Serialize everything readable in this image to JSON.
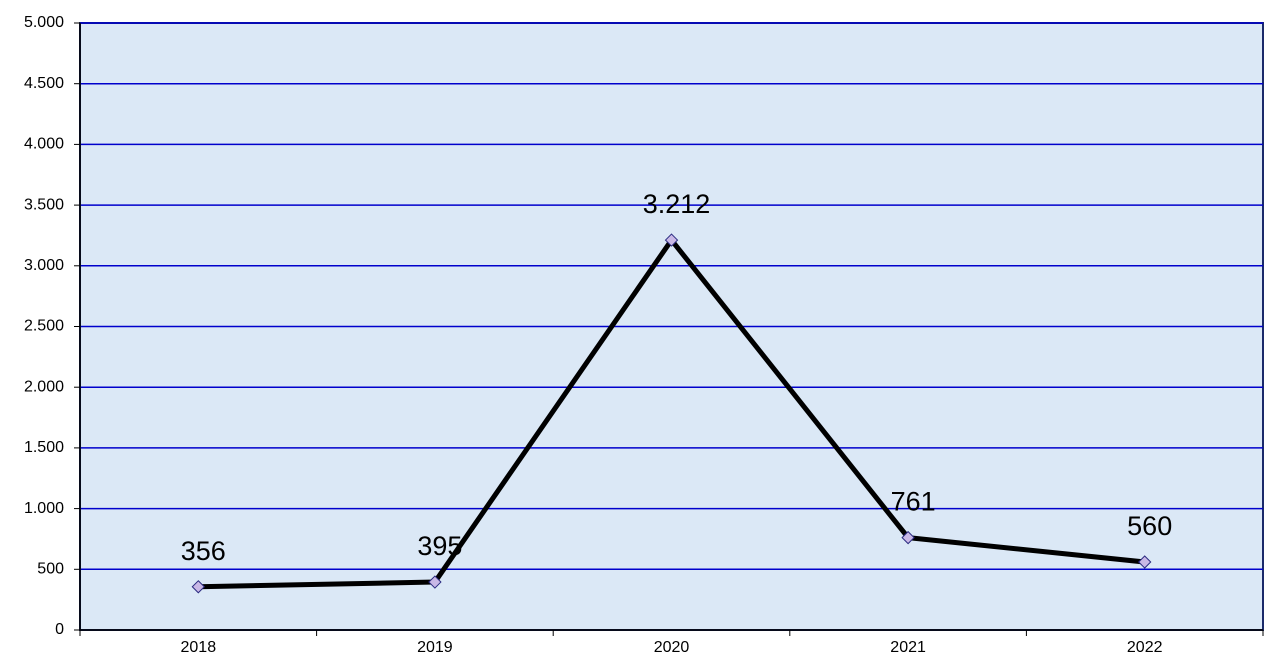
{
  "chart_data": {
    "type": "line",
    "categories": [
      "2018",
      "2019",
      "2020",
      "2021",
      "2022"
    ],
    "values": [
      356,
      395,
      3212,
      761,
      560
    ],
    "value_labels": [
      "356",
      "395",
      "3.212",
      "761",
      "560"
    ],
    "color": "#000000",
    "marker_color": "#c9b8e6",
    "ylim": [
      0,
      5000
    ],
    "yticks": [
      0,
      500,
      {
        "value": 1000,
        "label": "1.000"
      },
      {
        "value": 1500,
        "label": "1.500"
      },
      {
        "value": 2000,
        "label": "2.000"
      },
      {
        "value": 2500,
        "label": "2.500"
      },
      {
        "value": 3000,
        "label": "3.000"
      },
      {
        "value": 3500,
        "label": "3.500"
      },
      {
        "value": 4000,
        "label": "4.000"
      },
      {
        "value": 4500,
        "label": "4.500"
      },
      {
        "value": 5000,
        "label": "5.000"
      }
    ],
    "grid": true,
    "grid_color": "#0000cc",
    "plot_background": "#dbe8f6"
  }
}
